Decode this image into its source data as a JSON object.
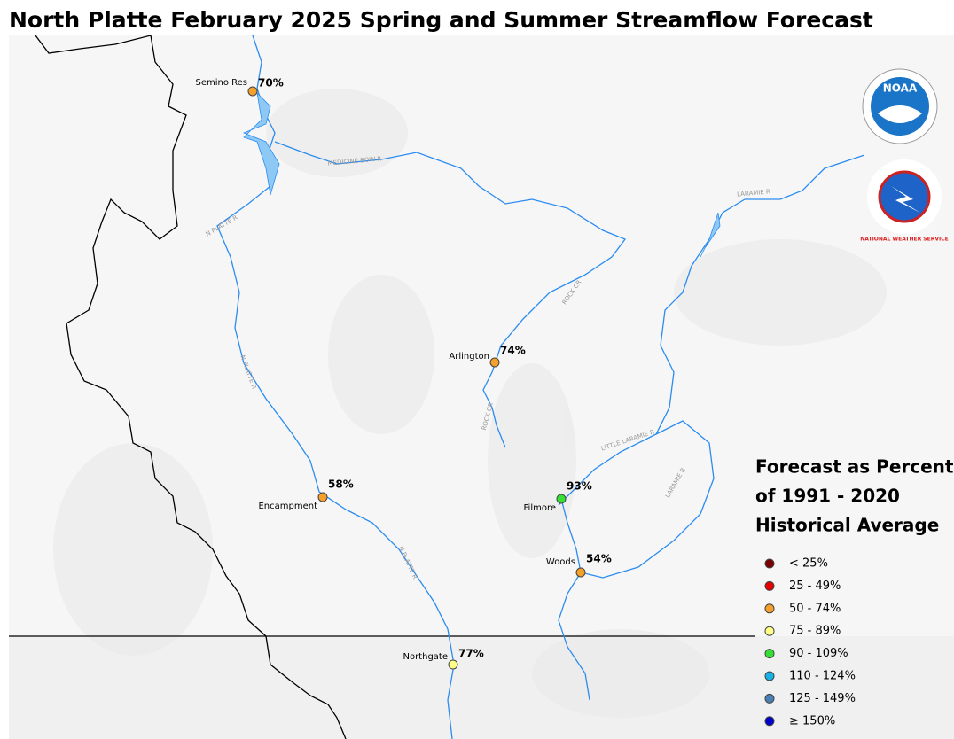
{
  "title": "North Platte February 2025 Spring and Summer Streamflow Forecast",
  "stations": [
    {
      "name": "Semino Res",
      "percent": "70%",
      "color": "#f5a02a"
    },
    {
      "name": "Arlington",
      "percent": "74%",
      "color": "#f5a02a"
    },
    {
      "name": "Encampment",
      "percent": "58%",
      "color": "#f5a02a"
    },
    {
      "name": "Filmore",
      "percent": "93%",
      "color": "#33e033"
    },
    {
      "name": "Woods",
      "percent": "54%",
      "color": "#f5a02a"
    },
    {
      "name": "Northgate",
      "percent": "77%",
      "color": "#ffff88"
    }
  ],
  "rivers": [
    "MEDICINE BOW R",
    "N PLATTE R",
    "N PLATTE R",
    "N PLATTE R",
    "LARAMIE R",
    "LARAMIE R",
    "LITTLE LARAMIE R",
    "ROCK CR",
    "ROCK CR"
  ],
  "legend": {
    "title": [
      "Forecast as Percent",
      "of 1991 - 2020",
      "Historical Average"
    ],
    "items": [
      {
        "label": "< 25%",
        "color": "#7a0000"
      },
      {
        "label": "25 - 49%",
        "color": "#e60000"
      },
      {
        "label": "50 - 74%",
        "color": "#f5a02a"
      },
      {
        "label": "75 - 89%",
        "color": "#ffff88"
      },
      {
        "label": "90 - 109%",
        "color": "#33e033"
      },
      {
        "label": "110 - 124%",
        "color": "#1ab0e8"
      },
      {
        "label": "125 - 149%",
        "color": "#4a7fb5"
      },
      {
        "label": "≥ 150%",
        "color": "#0000cc"
      }
    ]
  },
  "logos": {
    "noaa": "NOAA",
    "nws": "NATIONAL WEATHER SERVICE"
  }
}
